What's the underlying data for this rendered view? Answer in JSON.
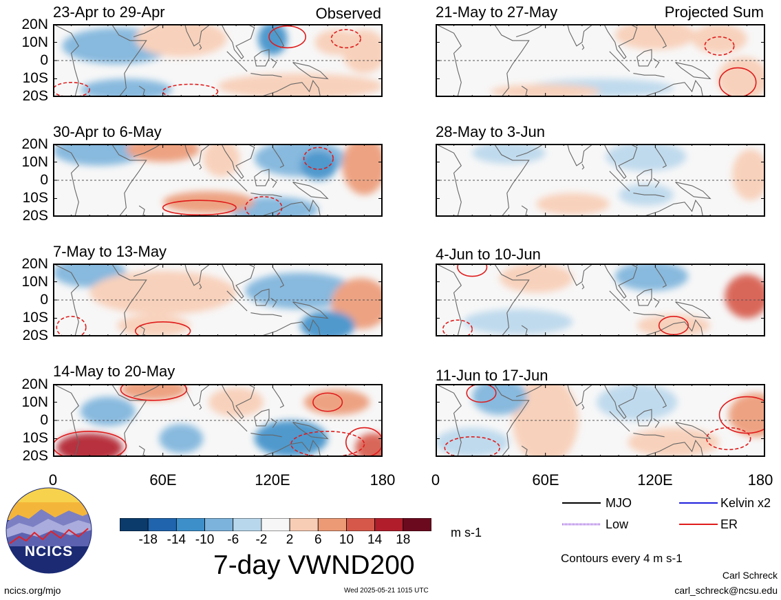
{
  "panels": [
    {
      "title": "23-Apr to 29-Apr",
      "tag": "Observed"
    },
    {
      "title": "21-May to 27-May",
      "tag": "Projected Sum"
    },
    {
      "title": "30-Apr to 6-May"
    },
    {
      "title": "28-May to 3-Jun"
    },
    {
      "title": "7-May to 13-May"
    },
    {
      "title": "4-Jun to 10-Jun"
    },
    {
      "title": "14-May to 20-May"
    },
    {
      "title": "11-Jun to 17-Jun"
    }
  ],
  "lat_labels": [
    "20N",
    "10N",
    "0",
    "10S",
    "20S"
  ],
  "lon_labels": [
    "0",
    "60E",
    "120E",
    "180"
  ],
  "colorbar": {
    "ticks": [
      "-18",
      "-14",
      "-10",
      "-6",
      "-2",
      "2",
      "6",
      "10",
      "14",
      "18"
    ],
    "colors": [
      "#0b3b6b",
      "#1f64ad",
      "#3d8fc9",
      "#7cb3dc",
      "#b9d7ec",
      "#f6f6f6",
      "#f8cdb5",
      "#ec9a76",
      "#d6584a",
      "#b11d2b",
      "#6b0a1e"
    ],
    "units": "m s-1"
  },
  "main_title": "7-day VWND200",
  "legend": {
    "items": [
      {
        "label": "MJO",
        "color": "#000000"
      },
      {
        "label": "Kelvin x2",
        "color": "#1f1fdd"
      },
      {
        "label": "Low",
        "color": "#9c5fe0"
      },
      {
        "label": "ER",
        "color": "#e01b1b"
      }
    ],
    "contour_note": "Contours every 4 m s-1"
  },
  "logo": {
    "text": "NCICS"
  },
  "footer": {
    "left": "ncics.org/mjo",
    "center": "Wed 2025-05-21 1015 UTC",
    "author": "Carl Schreck",
    "email": "carl_schreck@ncsu.edu"
  }
}
